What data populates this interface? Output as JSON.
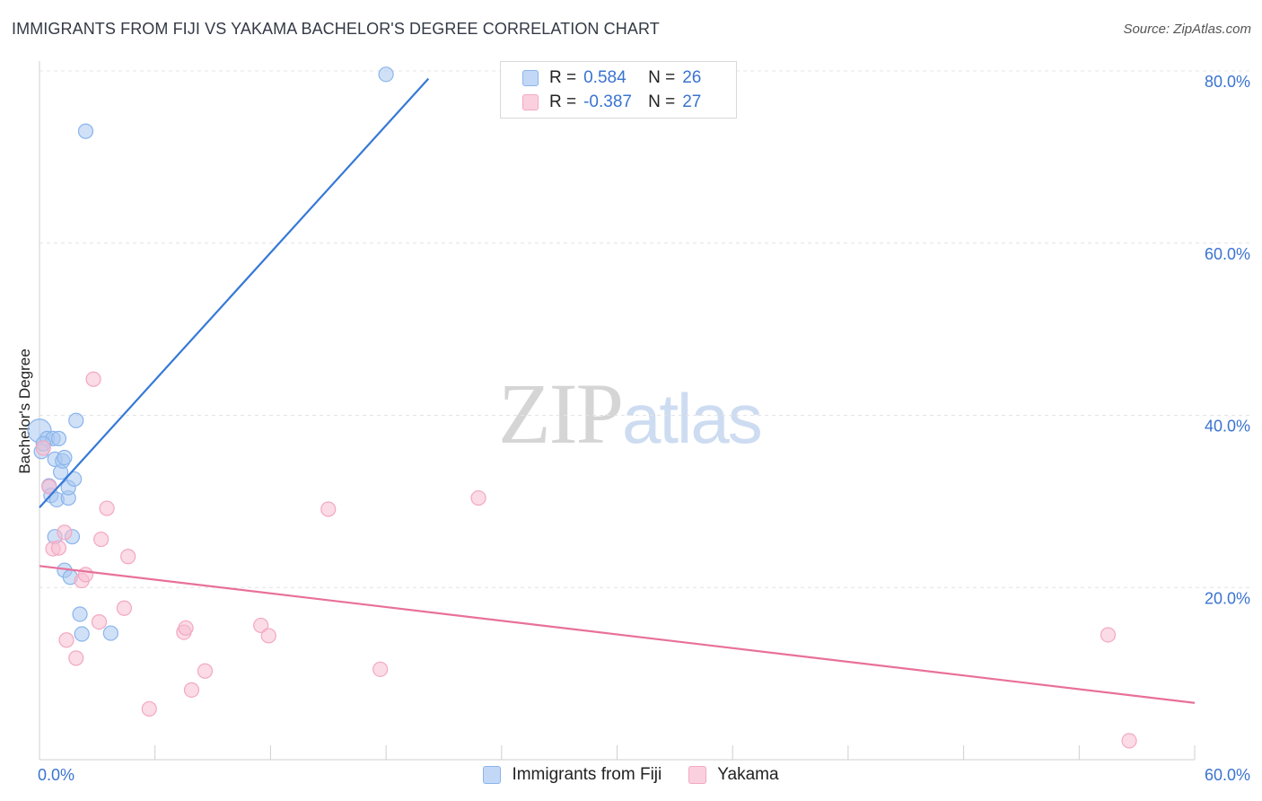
{
  "title": "IMMIGRANTS FROM FIJI VS YAKAMA BACHELOR'S DEGREE CORRELATION CHART",
  "source": "Source: ZipAtlas.com",
  "watermark": {
    "zip": "ZIP",
    "atlas": "atlas"
  },
  "legend": {
    "fiji": {
      "r_label": "R =",
      "r_value": "0.584",
      "n_label": "N =",
      "n_value": "26"
    },
    "yakama": {
      "r_label": "R =",
      "r_value": "-0.387",
      "n_label": "N =",
      "n_value": "27"
    }
  },
  "chart_data": {
    "type": "scatter",
    "title": "IMMIGRANTS FROM FIJI VS YAKAMA BACHELOR'S DEGREE CORRELATION CHART",
    "xlabel": "",
    "ylabel": "Bachelor's Degree",
    "xlim": [
      0,
      60
    ],
    "ylim": [
      0,
      82
    ],
    "x_tick_labels": [
      "0.0%",
      "60.0%"
    ],
    "y_ticks": [
      20,
      40,
      60,
      80
    ],
    "y_tick_labels": [
      "20.0%",
      "40.0%",
      "60.0%",
      "80.0%"
    ],
    "grid": true,
    "colors": {
      "fiji": "#8ab4ec",
      "yakama": "#f3a8c0",
      "fiji_line": "#3579d6",
      "yakama_line": "#e8709a",
      "axis_text": "#3a73d0"
    },
    "series": [
      {
        "name": "Immigrants from Fiji",
        "points": [
          [
            0.0,
            38.2
          ],
          [
            0.1,
            35.8
          ],
          [
            0.4,
            37.3
          ],
          [
            0.5,
            31.8
          ],
          [
            0.6,
            30.7
          ],
          [
            0.7,
            37.3
          ],
          [
            0.8,
            25.9
          ],
          [
            0.8,
            34.9
          ],
          [
            0.9,
            30.2
          ],
          [
            1.0,
            37.3
          ],
          [
            1.1,
            33.4
          ],
          [
            1.2,
            34.7
          ],
          [
            1.3,
            22.0
          ],
          [
            1.3,
            35.1
          ],
          [
            1.5,
            30.4
          ],
          [
            1.5,
            31.6
          ],
          [
            1.6,
            21.2
          ],
          [
            1.7,
            25.9
          ],
          [
            1.8,
            32.6
          ],
          [
            1.9,
            39.4
          ],
          [
            2.1,
            16.9
          ],
          [
            2.2,
            14.6
          ],
          [
            2.4,
            73.0
          ],
          [
            3.7,
            14.7
          ],
          [
            18.0,
            79.6
          ],
          [
            0.2,
            36.7
          ]
        ],
        "trend": {
          "x0": 0.0,
          "y0": 29.3,
          "x1": 20.2,
          "y1": 79.1
        }
      },
      {
        "name": "Yakama",
        "points": [
          [
            0.2,
            36.2
          ],
          [
            0.5,
            31.7
          ],
          [
            0.7,
            24.5
          ],
          [
            1.0,
            24.6
          ],
          [
            1.3,
            26.4
          ],
          [
            1.4,
            13.9
          ],
          [
            1.9,
            11.8
          ],
          [
            2.2,
            20.8
          ],
          [
            2.4,
            21.5
          ],
          [
            2.8,
            44.2
          ],
          [
            3.1,
            16.0
          ],
          [
            3.2,
            25.6
          ],
          [
            3.5,
            29.2
          ],
          [
            4.4,
            17.6
          ],
          [
            4.6,
            23.6
          ],
          [
            5.7,
            5.9
          ],
          [
            7.5,
            14.8
          ],
          [
            7.6,
            15.3
          ],
          [
            7.9,
            8.1
          ],
          [
            8.6,
            10.3
          ],
          [
            11.5,
            15.6
          ],
          [
            11.9,
            14.4
          ],
          [
            15.0,
            29.1
          ],
          [
            17.7,
            10.5
          ],
          [
            22.8,
            30.4
          ],
          [
            55.5,
            14.5
          ],
          [
            56.6,
            2.2
          ]
        ],
        "trend": {
          "x0": 0.0,
          "y0": 22.5,
          "x1": 60.0,
          "y1": 6.6
        }
      }
    ]
  },
  "bottom_legend": {
    "fiji": "Immigrants from Fiji",
    "yakama": "Yakama"
  }
}
